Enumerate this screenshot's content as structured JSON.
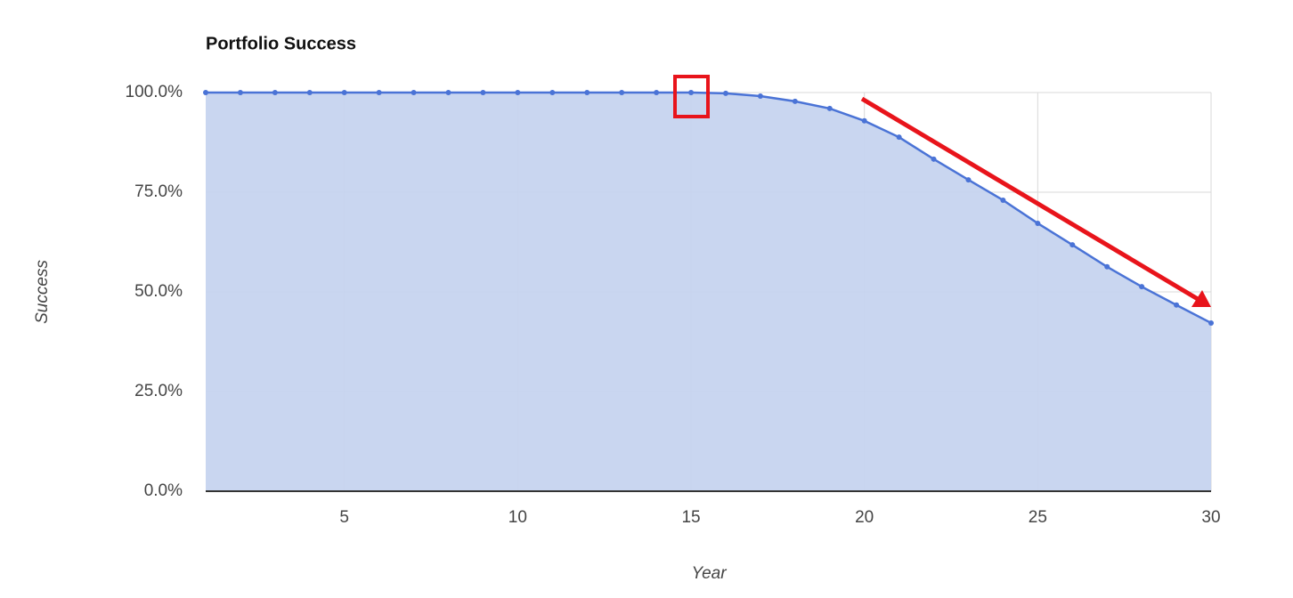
{
  "chart_data": {
    "type": "area",
    "title": "Portfolio Success",
    "x_label": "Year",
    "y_label": "Success",
    "x": [
      1,
      2,
      3,
      4,
      5,
      6,
      7,
      8,
      9,
      10,
      11,
      12,
      13,
      14,
      15,
      16,
      17,
      18,
      19,
      20,
      21,
      22,
      23,
      24,
      25,
      26,
      27,
      28,
      29,
      30
    ],
    "series": [
      {
        "name": "Success",
        "color": "#4a73d6",
        "fill": "#c6d4ef",
        "values": [
          100,
          100,
          100,
          100,
          100,
          100,
          100,
          100,
          100,
          100,
          100,
          100,
          100,
          100,
          100,
          99.8,
          99.1,
          97.8,
          96.0,
          92.9,
          88.8,
          83.3,
          78.1,
          73.0,
          67.2,
          61.8,
          56.3,
          51.3,
          46.7,
          42.2
        ]
      }
    ],
    "xlim": [
      1,
      30
    ],
    "xticks": [
      5,
      10,
      15,
      20,
      25,
      30
    ],
    "ylim": [
      0,
      100
    ],
    "yticks": [
      {
        "value": 0,
        "label": "0.0%"
      },
      {
        "value": 25,
        "label": "25.0%"
      },
      {
        "value": 50,
        "label": "50.0%"
      },
      {
        "value": 75,
        "label": "75.0%"
      },
      {
        "value": 100,
        "label": "100.0%"
      }
    ],
    "grid": true
  }
}
